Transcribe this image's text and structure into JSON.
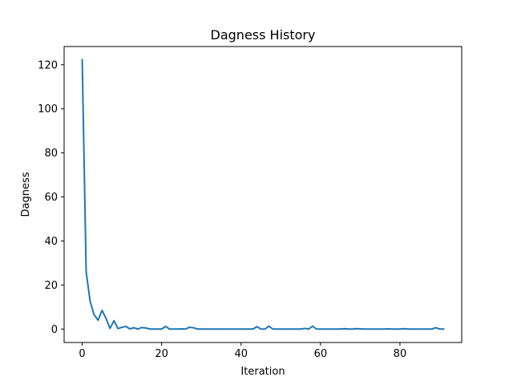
{
  "chart_data": {
    "type": "line",
    "title": "Dagness History",
    "xlabel": "Iteration",
    "ylabel": "Dagness",
    "xlim": [
      -4.55,
      95.55
    ],
    "ylim": [
      -6.1,
      128.3
    ],
    "xticks": [
      0,
      20,
      40,
      60,
      80
    ],
    "yticks": [
      0,
      20,
      40,
      60,
      80,
      100,
      120
    ],
    "grid": false,
    "series": [
      {
        "color": "#1f77b4",
        "x": [
          0,
          1,
          2,
          3,
          4,
          5,
          6,
          7,
          8,
          9,
          10,
          11,
          12,
          13,
          14,
          15,
          16,
          17,
          18,
          19,
          20,
          21,
          22,
          23,
          24,
          25,
          26,
          27,
          28,
          29,
          30,
          31,
          32,
          33,
          34,
          35,
          36,
          37,
          38,
          39,
          40,
          41,
          42,
          43,
          44,
          45,
          46,
          47,
          48,
          49,
          50,
          51,
          52,
          53,
          54,
          55,
          56,
          57,
          58,
          59,
          60,
          61,
          62,
          63,
          64,
          65,
          66,
          67,
          68,
          69,
          70,
          71,
          72,
          73,
          74,
          75,
          76,
          77,
          78,
          79,
          80,
          81,
          82,
          83,
          84,
          85,
          86,
          87,
          88,
          89,
          90,
          91
        ],
        "values": [
          122.3,
          26.0,
          12.5,
          6.5,
          4.0,
          8.5,
          4.8,
          0.3,
          3.8,
          0.2,
          0.8,
          1.2,
          0.1,
          0.6,
          0.0,
          0.7,
          0.5,
          0.0,
          0.0,
          0.0,
          0.0,
          1.2,
          0.0,
          0.0,
          0.0,
          0.1,
          0.0,
          0.8,
          0.6,
          0.0,
          0.0,
          0.0,
          0.0,
          0.0,
          0.0,
          0.0,
          0.0,
          0.0,
          0.0,
          0.0,
          0.0,
          0.0,
          0.0,
          0.0,
          1.1,
          0.0,
          0.0,
          1.3,
          0.0,
          0.0,
          0.0,
          0.0,
          0.0,
          0.0,
          0.0,
          0.0,
          0.3,
          0.0,
          1.3,
          0.0,
          0.0,
          0.0,
          0.0,
          0.0,
          0.0,
          0.0,
          0.2,
          0.0,
          0.0,
          0.2,
          0.1,
          0.0,
          0.0,
          0.0,
          0.0,
          0.0,
          0.0,
          0.1,
          0.0,
          0.0,
          0.0,
          0.2,
          0.0,
          0.0,
          0.0,
          0.0,
          0.0,
          0.0,
          0.0,
          0.6,
          0.0,
          0.0
        ]
      }
    ]
  }
}
